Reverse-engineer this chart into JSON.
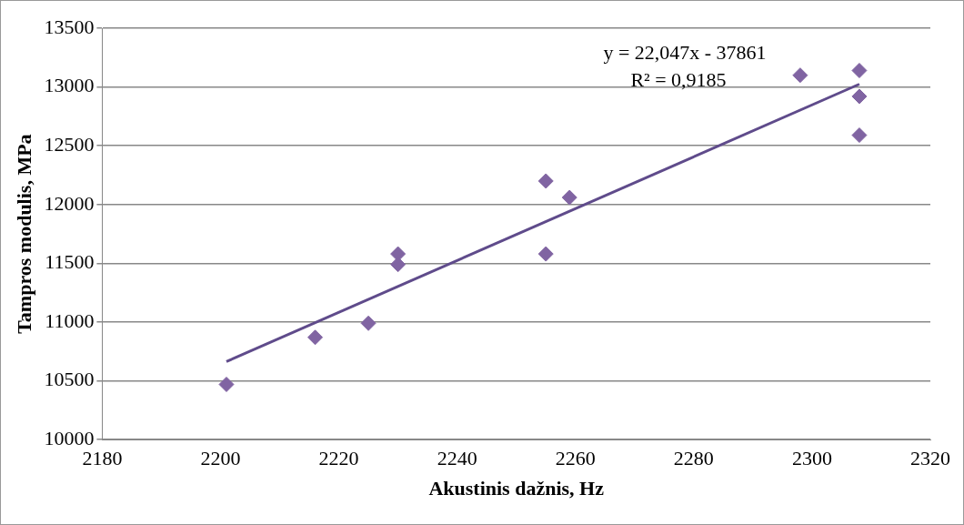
{
  "chart_data": {
    "type": "scatter",
    "xlabel": "Akustinis dažnis, Hz",
    "ylabel": "Tampros modulis, MPa",
    "xlim": [
      2180,
      2320
    ],
    "xticks": [
      2180,
      2200,
      2220,
      2240,
      2260,
      2280,
      2300,
      2320
    ],
    "ylim": [
      10000,
      13500
    ],
    "yticks": [
      10000,
      10500,
      11000,
      11500,
      12000,
      12500,
      13000,
      13500
    ],
    "grid": "y",
    "legend": false,
    "marker": "diamond",
    "series": [
      {
        "color": "#8064a2",
        "x": [
          2201,
          2216,
          2225,
          2230,
          2230,
          2255,
          2255,
          2259,
          2298,
          2308,
          2308,
          2308
        ],
        "values": [
          10470,
          10870,
          10990,
          11580,
          11490,
          12200,
          11580,
          12060,
          13100,
          13140,
          12920,
          12590
        ]
      },
      {
        "type": "line",
        "color": "#5f4b8b",
        "marker": "none",
        "x": [
          2201,
          2308
        ],
        "values": [
          10664,
          13024
        ]
      }
    ],
    "annotations": [
      "y = 22,047x - 37861",
      "R² = 0,9185"
    ]
  }
}
